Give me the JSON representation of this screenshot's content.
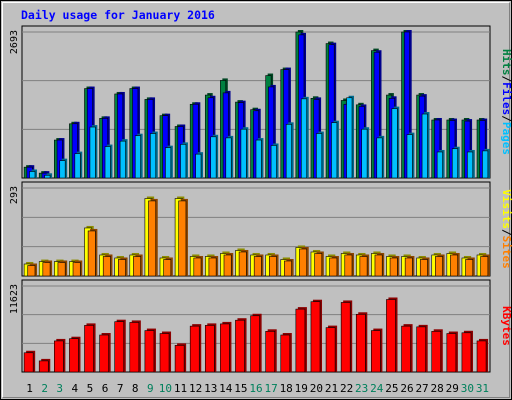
{
  "title": "Daily usage for January 2016",
  "colors": {
    "background": "#c0c0c0",
    "hits": "#008040",
    "files": "#0000ff",
    "pages": "#00c0ff",
    "visits": "#ffff00",
    "sites": "#ff8000",
    "kbytes": "#ff0000",
    "weekend_day": "#00805c",
    "title": "#0000ff"
  },
  "chart_data": [
    {
      "type": "bar",
      "panel": "hits-files-pages",
      "axis_max_label": "2693",
      "ylim": [
        0,
        2693
      ],
      "legend": [
        {
          "label": "Pages",
          "color": "#00c0ff"
        },
        {
          "label": "/",
          "color": "#000000"
        },
        {
          "label": "Files",
          "color": "#0000ff"
        },
        {
          "label": "/",
          "color": "#000000"
        },
        {
          "label": "Hits",
          "color": "#008040"
        }
      ],
      "series": [
        {
          "name": "Hits",
          "values": [
            200,
            90,
            700,
            1000,
            1650,
            1100,
            1550,
            1650,
            1450,
            1150,
            950,
            1360,
            1530,
            1800,
            1400,
            1260,
            1890,
            2000,
            2693,
            1470,
            2480,
            1430,
            1350,
            2350,
            1530,
            2693,
            1530,
            1070,
            1070,
            1070,
            1070
          ]
        },
        {
          "name": "Files",
          "values": [
            200,
            90,
            700,
            1000,
            1650,
            1100,
            1550,
            1650,
            1450,
            1150,
            950,
            1360,
            1480,
            1570,
            1390,
            1240,
            1680,
            2000,
            2640,
            1450,
            2460,
            1360,
            1320,
            2320,
            1470,
            2693,
            1510,
            1070,
            1060,
            1050,
            1060
          ]
        },
        {
          "name": "Pages",
          "values": [
            120,
            50,
            320,
            450,
            940,
            580,
            680,
            780,
            820,
            560,
            620,
            440,
            760,
            740,
            900,
            700,
            600,
            990,
            1460,
            820,
            1020,
            1480,
            900,
            740,
            1280,
            800,
            1180,
            480,
            540,
            480,
            500
          ]
        }
      ]
    },
    {
      "type": "bar",
      "panel": "visits-sites",
      "axis_max_label": "293",
      "ylim": [
        0,
        293
      ],
      "legend": [
        {
          "label": "Sites",
          "color": "#ff8000"
        },
        {
          "label": "/",
          "color": "#000000"
        },
        {
          "label": "Visits",
          "color": "#ffff00"
        }
      ],
      "series": [
        {
          "name": "Visits",
          "values": [
            40,
            48,
            48,
            48,
            160,
            70,
            60,
            70,
            258,
            60,
            258,
            65,
            65,
            75,
            85,
            70,
            70,
            55,
            95,
            80,
            65,
            75,
            70,
            75,
            65,
            65,
            60,
            70,
            75,
            60,
            70
          ]
        },
        {
          "name": "Sites",
          "values": [
            35,
            45,
            45,
            45,
            150,
            65,
            55,
            65,
            250,
            55,
            250,
            60,
            60,
            70,
            80,
            65,
            65,
            50,
            90,
            75,
            60,
            70,
            65,
            70,
            60,
            60,
            55,
            65,
            70,
            55,
            65
          ]
        }
      ]
    },
    {
      "type": "bar",
      "panel": "kbytes",
      "axis_max_label": "11623",
      "ylim": [
        0,
        11623
      ],
      "legend": [
        {
          "label": "KBytes",
          "color": "#ff0000"
        }
      ],
      "series": [
        {
          "name": "KBytes",
          "values": [
            2600,
            1500,
            4200,
            4500,
            6300,
            5000,
            6800,
            6700,
            5600,
            5200,
            3600,
            6200,
            6300,
            6500,
            7000,
            7600,
            5500,
            5000,
            8500,
            9500,
            6000,
            9400,
            7800,
            5600,
            9800,
            6200,
            6100,
            5500,
            5200,
            5300,
            4200
          ]
        }
      ]
    }
  ],
  "days": [
    "1",
    "2",
    "3",
    "4",
    "5",
    "6",
    "7",
    "8",
    "9",
    "10",
    "11",
    "12",
    "13",
    "14",
    "15",
    "16",
    "17",
    "18",
    "19",
    "20",
    "21",
    "22",
    "23",
    "24",
    "25",
    "26",
    "27",
    "28",
    "29",
    "30",
    "31"
  ],
  "weekend_days": [
    "2",
    "3",
    "9",
    "10",
    "16",
    "17",
    "23",
    "24",
    "30",
    "31"
  ]
}
